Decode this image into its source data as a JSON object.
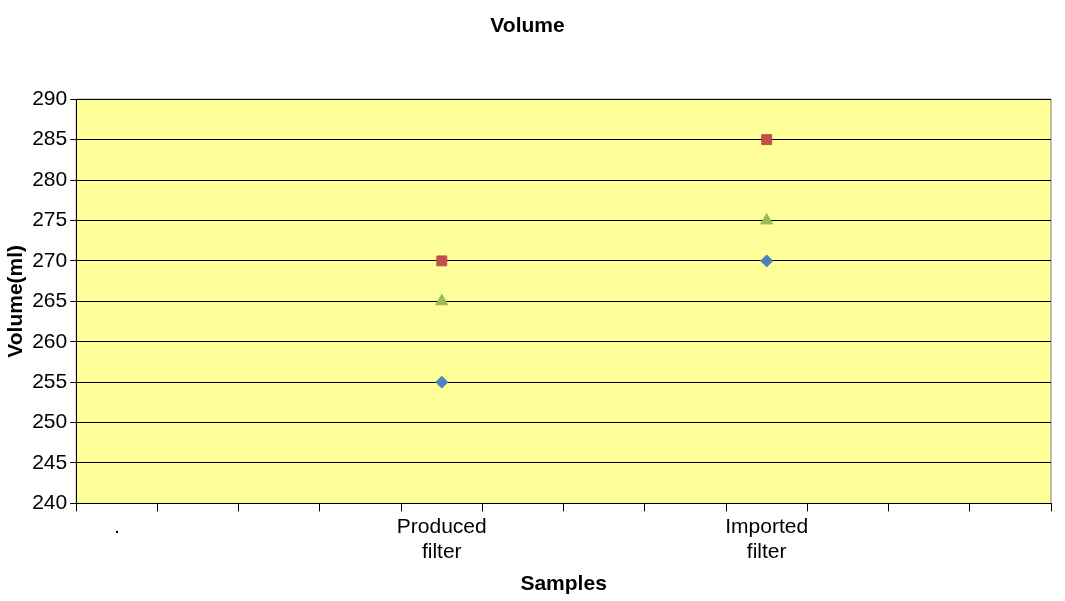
{
  "chart_data": {
    "type": "scatter",
    "title": "Volume",
    "xlabel": "Samples",
    "ylabel": "Volume(ml)",
    "categories": [
      ".",
      null,
      null,
      null,
      "Produced filter",
      null,
      null,
      null,
      "Imported filter",
      null,
      null,
      null
    ],
    "series": [
      {
        "color": "#4f81bd",
        "marker": "diamond",
        "values": [
          null,
          null,
          null,
          null,
          255,
          null,
          null,
          null,
          270,
          null,
          null,
          null
        ]
      },
      {
        "color": "#c0504d",
        "marker": "square",
        "values": [
          null,
          null,
          null,
          null,
          270,
          null,
          null,
          null,
          285,
          null,
          null,
          null
        ]
      },
      {
        "color": "#9bbb59",
        "marker": "triangle",
        "values": [
          null,
          null,
          null,
          null,
          265,
          null,
          null,
          null,
          275,
          null,
          null,
          null
        ]
      }
    ],
    "ylim": [
      240,
      290
    ],
    "yticks": [
      240,
      245,
      250,
      255,
      260,
      265,
      270,
      275,
      280,
      285,
      290
    ],
    "grid": "y"
  }
}
